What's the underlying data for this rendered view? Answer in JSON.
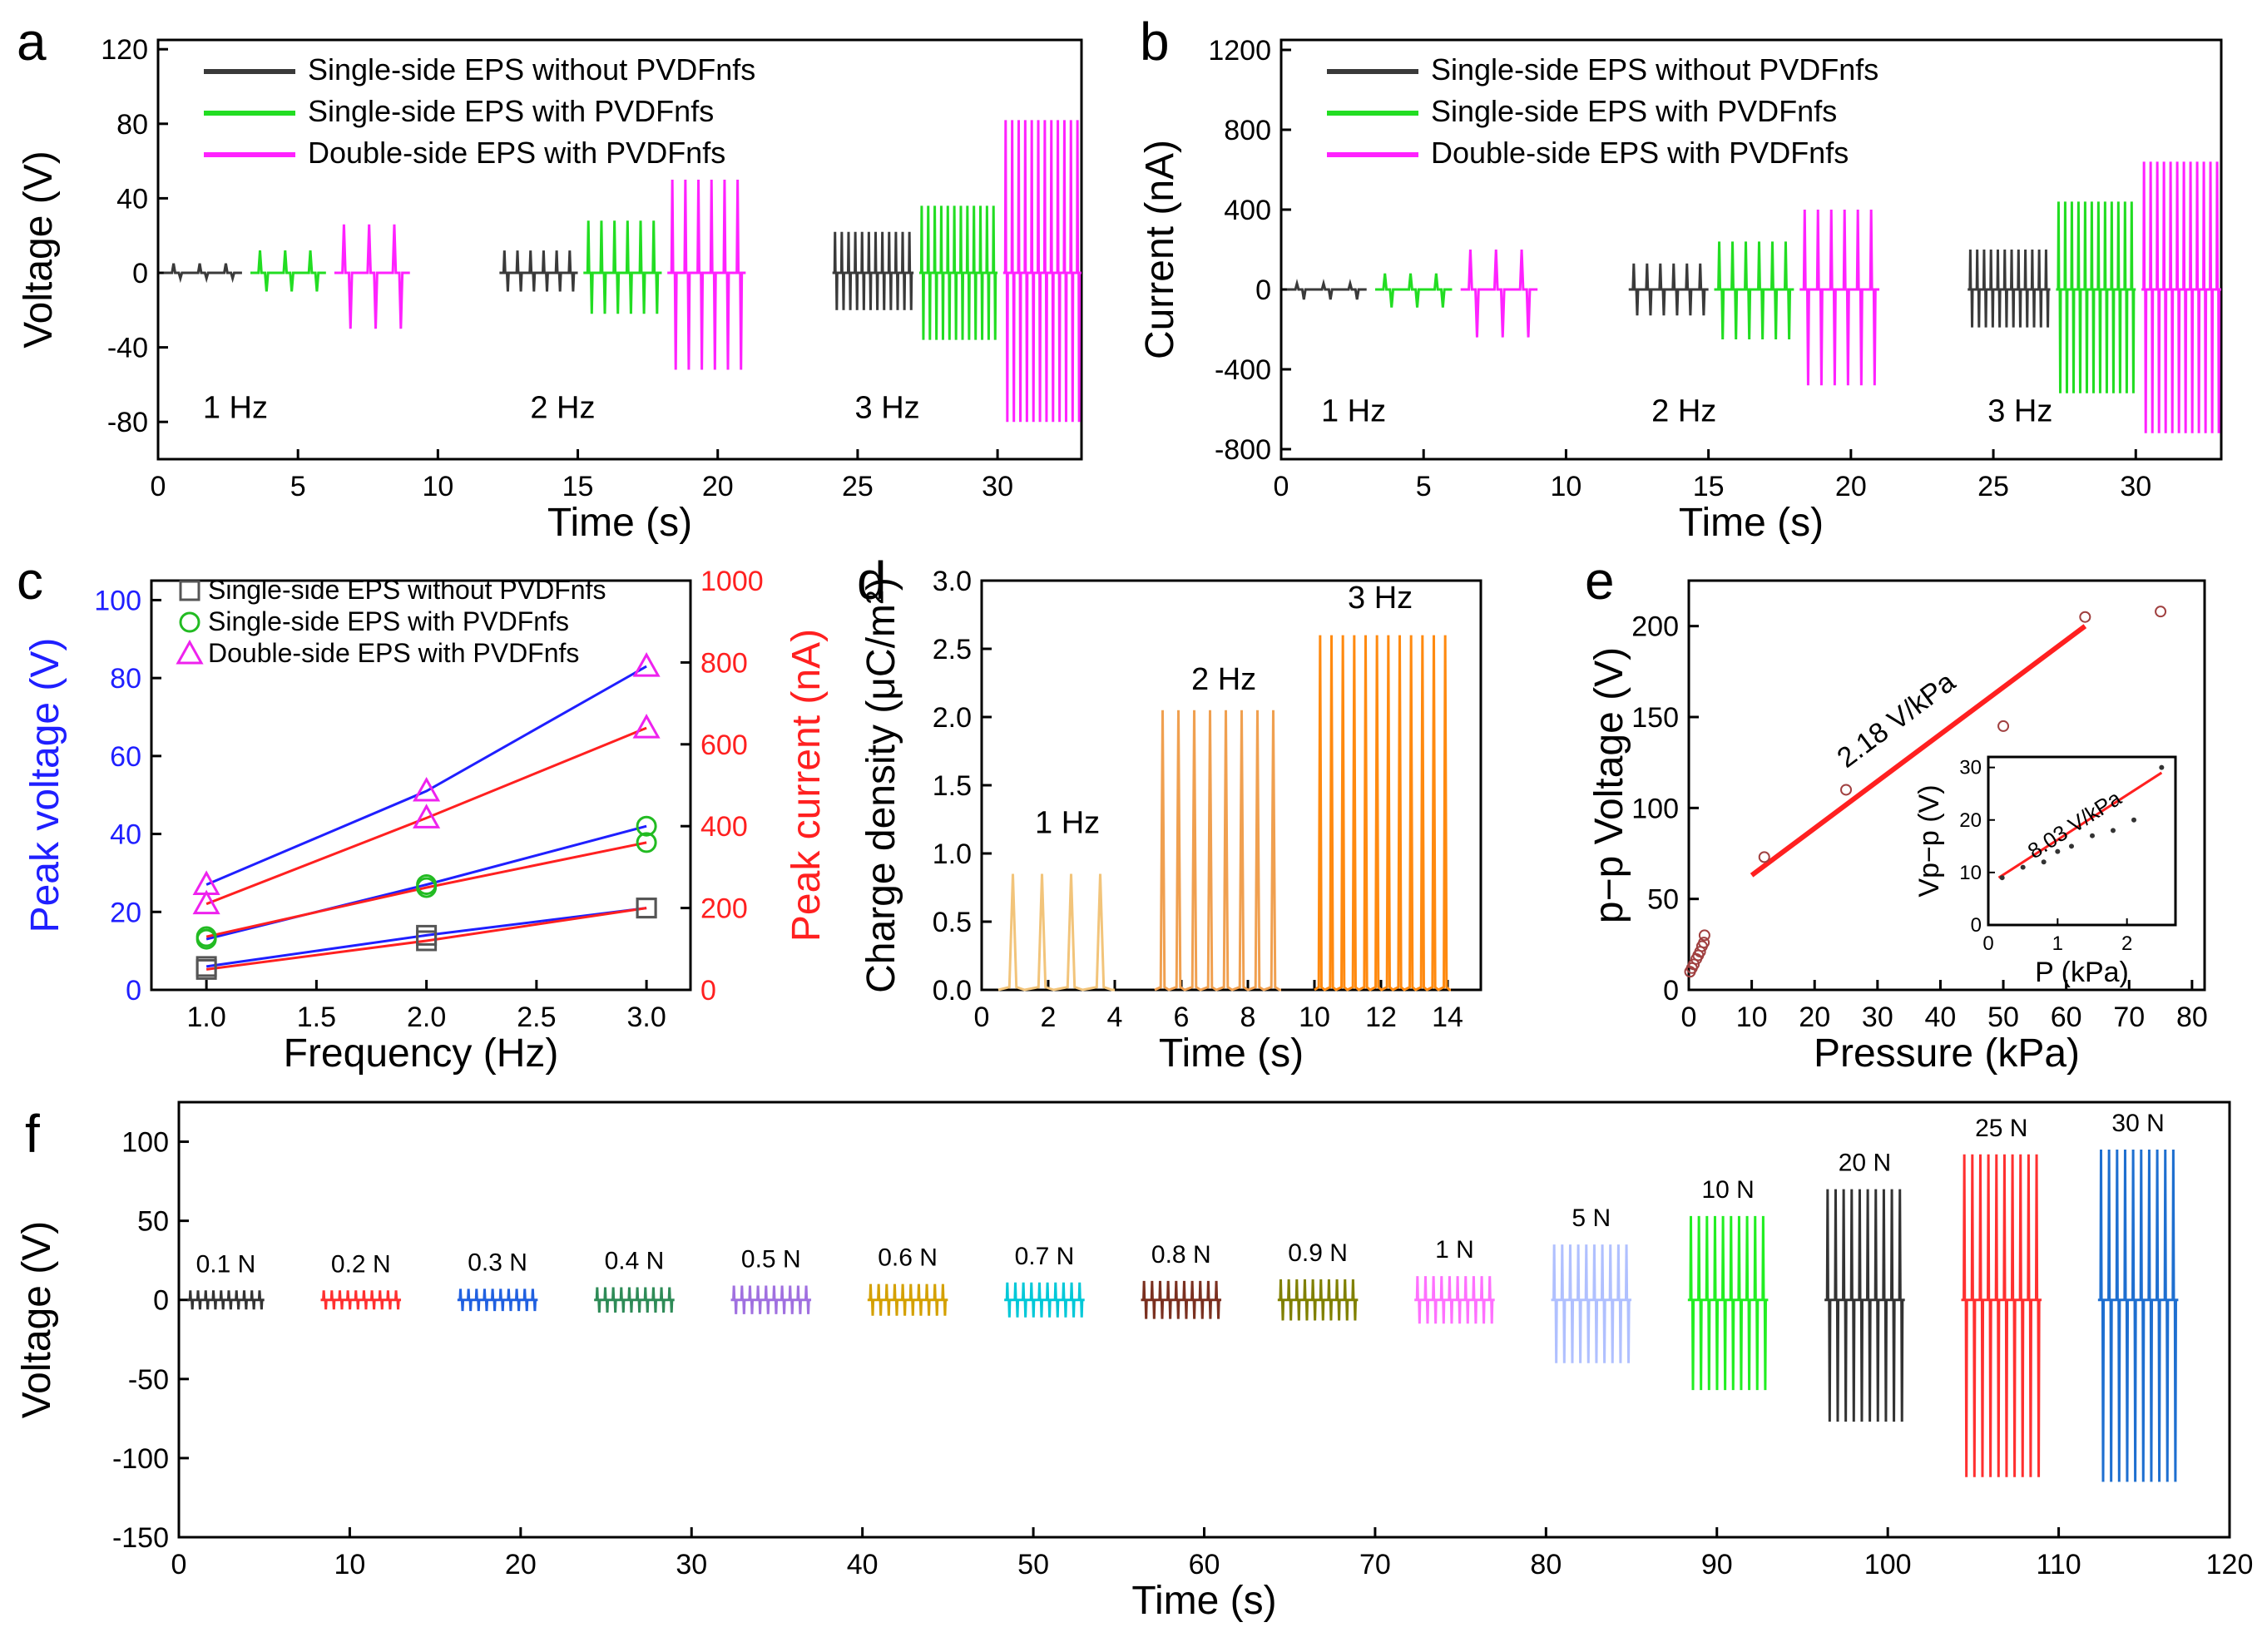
{
  "figure": {
    "colors": {
      "black": "#3a3a3a",
      "green": "#22dd22",
      "magenta": "#ff22ff",
      "blue": "#1f1fff",
      "red": "#ff2020",
      "orangeLight": "#f2c47a",
      "orangeMid": "#f0a050",
      "orangeDark": "#ff8a10"
    },
    "legend_labels": [
      "Single-side EPS without PVDFnfs",
      "Single-side EPS with PVDFnfs",
      "Double-side EPS with PVDFnfs"
    ]
  },
  "chart_data": [
    {
      "id": "a",
      "panel_label": "a",
      "type": "line",
      "title": "",
      "xlabel": "Time (s)",
      "ylabel": "Voltage (V)",
      "xlim": [
        0,
        33
      ],
      "ylim": [
        -100,
        125
      ],
      "xticks": [
        0,
        5,
        10,
        15,
        20,
        25,
        30
      ],
      "yticks": [
        -80,
        -40,
        0,
        40,
        80,
        120
      ],
      "legend": [
        "Single-side EPS without PVDFnfs",
        "Single-side EPS with PVDFnfs",
        "Double-side EPS with PVDFnfs"
      ],
      "freq_labels": [
        {
          "text": "1 Hz",
          "x": 1.6,
          "y": -78
        },
        {
          "text": "2 Hz",
          "x": 13.3,
          "y": -78
        },
        {
          "text": "3 Hz",
          "x": 24.9,
          "y": -78
        }
      ],
      "series": [
        {
          "name": "Single-side EPS without PVDFnfs",
          "color": "#3a3a3a",
          "bursts": [
            {
              "x0": 0.2,
              "x1": 3.0,
              "n": 3,
              "pos": 5,
              "neg": -3
            },
            {
              "x0": 12.2,
              "x1": 15.0,
              "n": 6,
              "pos": 12,
              "neg": -10
            },
            {
              "x0": 24.1,
              "x1": 27.0,
              "n": 12,
              "pos": 22,
              "neg": -20
            }
          ]
        },
        {
          "name": "Single-side EPS with PVDFnfs",
          "color": "#22dd22",
          "bursts": [
            {
              "x0": 3.3,
              "x1": 6.0,
              "n": 3,
              "pos": 12,
              "neg": -10
            },
            {
              "x0": 15.2,
              "x1": 18.0,
              "n": 6,
              "pos": 28,
              "neg": -22
            },
            {
              "x0": 27.2,
              "x1": 30.0,
              "n": 12,
              "pos": 36,
              "neg": -36
            }
          ]
        },
        {
          "name": "Double-side EPS with PVDFnfs",
          "color": "#ff22ff",
          "bursts": [
            {
              "x0": 6.3,
              "x1": 9.0,
              "n": 3,
              "pos": 26,
              "neg": -30
            },
            {
              "x0": 18.2,
              "x1": 21.0,
              "n": 6,
              "pos": 50,
              "neg": -52
            },
            {
              "x0": 30.2,
              "x1": 33.0,
              "n": 12,
              "pos": 82,
              "neg": -80
            }
          ]
        }
      ]
    },
    {
      "id": "b",
      "panel_label": "b",
      "type": "line",
      "title": "",
      "xlabel": "Time (s)",
      "ylabel": "Current (nA)",
      "xlim": [
        0,
        33
      ],
      "ylim": [
        -850,
        1250
      ],
      "xticks": [
        0,
        5,
        10,
        15,
        20,
        25,
        30
      ],
      "yticks": [
        -800,
        -400,
        0,
        400,
        800,
        1200
      ],
      "legend": [
        "Single-side EPS without PVDFnfs",
        "Single-side EPS with PVDFnfs",
        "Double-side EPS with PVDFnfs"
      ],
      "freq_labels": [
        {
          "text": "1 Hz",
          "x": 1.4,
          "y": -660
        },
        {
          "text": "2 Hz",
          "x": 13.0,
          "y": -660
        },
        {
          "text": "3 Hz",
          "x": 24.8,
          "y": -660
        }
      ],
      "series": [
        {
          "name": "Single-side EPS without PVDFnfs",
          "color": "#3a3a3a",
          "bursts": [
            {
              "x0": 0.2,
              "x1": 3.0,
              "n": 3,
              "pos": 30,
              "neg": -50
            },
            {
              "x0": 12.2,
              "x1": 15.0,
              "n": 6,
              "pos": 130,
              "neg": -130
            },
            {
              "x0": 24.1,
              "x1": 27.0,
              "n": 12,
              "pos": 200,
              "neg": -190
            }
          ]
        },
        {
          "name": "Single-side EPS with PVDFnfs",
          "color": "#22dd22",
          "bursts": [
            {
              "x0": 3.3,
              "x1": 6.0,
              "n": 3,
              "pos": 80,
              "neg": -90
            },
            {
              "x0": 15.2,
              "x1": 18.0,
              "n": 6,
              "pos": 240,
              "neg": -250
            },
            {
              "x0": 27.2,
              "x1": 30.0,
              "n": 12,
              "pos": 440,
              "neg": -520
            }
          ]
        },
        {
          "name": "Double-side EPS with PVDFnfs",
          "color": "#ff22ff",
          "bursts": [
            {
              "x0": 6.3,
              "x1": 9.0,
              "n": 3,
              "pos": 200,
              "neg": -240
            },
            {
              "x0": 18.2,
              "x1": 21.0,
              "n": 6,
              "pos": 400,
              "neg": -480
            },
            {
              "x0": 30.2,
              "x1": 33.0,
              "n": 12,
              "pos": 640,
              "neg": -720
            }
          ]
        }
      ]
    },
    {
      "id": "c",
      "panel_label": "c",
      "type": "scatter",
      "xlabel": "Frequency (Hz)",
      "ylabel": "Peak voltage (V)",
      "y2label": "Peak current (nA)",
      "xlim": [
        0.75,
        3.2
      ],
      "ylim": [
        0,
        105
      ],
      "y2lim": [
        0,
        1000
      ],
      "xticks": [
        1.0,
        1.5,
        2.0,
        2.5,
        3.0
      ],
      "yticks": [
        0,
        20,
        40,
        60,
        80,
        100
      ],
      "y2ticks": [
        0,
        200,
        400,
        600,
        800,
        1000
      ],
      "x": [
        1,
        2,
        3
      ],
      "series": [
        {
          "name": "Single-side EPS without PVDFnfs",
          "marker": "square",
          "voltage": [
            6,
            14,
            21
          ],
          "current": [
            50,
            120,
            200
          ]
        },
        {
          "name": "Single-side EPS with PVDFnfs",
          "marker": "circle",
          "voltage": [
            13,
            27,
            42
          ],
          "current": [
            130,
            250,
            360
          ]
        },
        {
          "name": "Double-side EPS with PVDFnfs",
          "marker": "triangle",
          "voltage": [
            27,
            51,
            83
          ],
          "current": [
            210,
            420,
            640
          ]
        }
      ]
    },
    {
      "id": "d",
      "panel_label": "d",
      "type": "line",
      "xlabel": "Time (s)",
      "ylabel": "Charge density (μC/m²)",
      "xlim": [
        0,
        15
      ],
      "ylim": [
        0,
        3.0
      ],
      "xticks": [
        0,
        2,
        4,
        6,
        8,
        10,
        12,
        14
      ],
      "yticks": [
        0.0,
        0.5,
        1.0,
        1.5,
        2.0,
        2.5,
        3.0
      ],
      "freq_labels": [
        {
          "text": "1 Hz",
          "x": 1.6,
          "y": 1.15
        },
        {
          "text": "2 Hz",
          "x": 6.3,
          "y": 2.2
        },
        {
          "text": "3 Hz",
          "x": 11.0,
          "y": 2.8
        }
      ],
      "series": [
        {
          "name": "1 Hz",
          "color": "#f2c47a",
          "x0": 0.5,
          "x1": 4.0,
          "n": 4,
          "peak": 0.85
        },
        {
          "name": "2 Hz",
          "color": "#f0a050",
          "x0": 5.2,
          "x1": 9.0,
          "n": 8,
          "peak": 2.05
        },
        {
          "name": "3 Hz",
          "color": "#ff8a10",
          "x0": 10.0,
          "x1": 14.1,
          "n": 12,
          "peak": 2.6
        }
      ]
    },
    {
      "id": "e",
      "panel_label": "e",
      "type": "scatter",
      "xlabel": "Pressure (kPa)",
      "ylabel": "p−p Voltage (V)",
      "xlim": [
        0,
        82
      ],
      "ylim": [
        0,
        225
      ],
      "xticks": [
        0,
        10,
        20,
        30,
        40,
        50,
        60,
        70,
        80
      ],
      "yticks": [
        0,
        50,
        100,
        150,
        200
      ],
      "x": [
        0.2,
        0.5,
        0.8,
        1.2,
        1.5,
        1.8,
        2.1,
        2.4,
        2.5,
        12,
        25,
        50,
        63,
        75
      ],
      "y": [
        10,
        12,
        14,
        17,
        19,
        21,
        24,
        26,
        30,
        73,
        110,
        145,
        205,
        208
      ],
      "fit": {
        "label": "2.18 V/kPa",
        "x": [
          10,
          63
        ],
        "y": [
          63,
          200
        ]
      },
      "inset": {
        "xlabel": "P (kPa)",
        "ylabel": "Vp−p (V)",
        "xlim": [
          0,
          2.7
        ],
        "ylim": [
          0,
          32
        ],
        "xticks": [
          0,
          1,
          2
        ],
        "yticks": [
          0,
          10,
          20,
          30
        ],
        "x": [
          0.2,
          0.5,
          0.8,
          1.0,
          1.2,
          1.5,
          1.8,
          2.1,
          2.5
        ],
        "y": [
          9,
          11,
          12,
          14,
          15,
          17,
          18,
          20,
          30
        ],
        "fit": {
          "label": "8.03 V/kPa",
          "x": [
            0.15,
            2.5
          ],
          "y": [
            9,
            29
          ]
        }
      }
    },
    {
      "id": "f",
      "panel_label": "f",
      "type": "line",
      "xlabel": "Time (s)",
      "ylabel": "Voltage (V)",
      "xlim": [
        0,
        120
      ],
      "ylim": [
        -150,
        125
      ],
      "xticks": [
        0,
        10,
        20,
        30,
        40,
        50,
        60,
        70,
        80,
        90,
        100,
        110,
        120
      ],
      "yticks": [
        -150,
        -100,
        -50,
        0,
        50,
        100
      ],
      "groups": [
        {
          "label": "0.1 N",
          "color": "#333333",
          "x0": 0.5,
          "x1": 5.0,
          "pos": 6,
          "neg": -6
        },
        {
          "label": "0.2 N",
          "color": "#ff3030",
          "x0": 8.3,
          "x1": 13.0,
          "pos": 6,
          "neg": -6
        },
        {
          "label": "0.3 N",
          "color": "#2060e0",
          "x0": 16.3,
          "x1": 21.0,
          "pos": 7,
          "neg": -7
        },
        {
          "label": "0.4 N",
          "color": "#2e8b57",
          "x0": 24.3,
          "x1": 29.0,
          "pos": 8,
          "neg": -8
        },
        {
          "label": "0.5 N",
          "color": "#a070e0",
          "x0": 32.3,
          "x1": 37.0,
          "pos": 9,
          "neg": -9
        },
        {
          "label": "0.6 N",
          "color": "#d4a000",
          "x0": 40.3,
          "x1": 45.0,
          "pos": 10,
          "neg": -10
        },
        {
          "label": "0.7 N",
          "color": "#00c8d8",
          "x0": 48.3,
          "x1": 53.0,
          "pos": 11,
          "neg": -11
        },
        {
          "label": "0.8 N",
          "color": "#7a3020",
          "x0": 56.3,
          "x1": 61.0,
          "pos": 12,
          "neg": -12
        },
        {
          "label": "0.9 N",
          "color": "#808000",
          "x0": 64.3,
          "x1": 69.0,
          "pos": 13,
          "neg": -13
        },
        {
          "label": "1 N",
          "color": "#ff70ff",
          "x0": 72.3,
          "x1": 77.0,
          "pos": 15,
          "neg": -15
        },
        {
          "label": "5 N",
          "color": "#b0c0ff",
          "x0": 80.3,
          "x1": 85.0,
          "pos": 35,
          "neg": -40
        },
        {
          "label": "10 N",
          "color": "#22ee22",
          "x0": 88.3,
          "x1": 93.0,
          "pos": 53,
          "neg": -57
        },
        {
          "label": "20 N",
          "color": "#333333",
          "x0": 96.3,
          "x1": 101.0,
          "pos": 70,
          "neg": -77
        },
        {
          "label": "25 N",
          "color": "#ff3030",
          "x0": 104.3,
          "x1": 109.0,
          "pos": 92,
          "neg": -112
        },
        {
          "label": "30 N",
          "color": "#1e6fd0",
          "x0": 112.3,
          "x1": 117.0,
          "pos": 95,
          "neg": -115
        }
      ]
    }
  ]
}
